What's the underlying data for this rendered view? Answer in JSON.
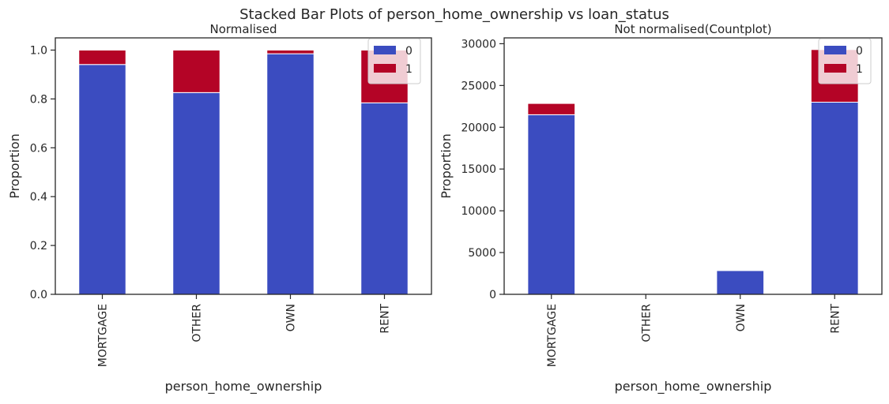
{
  "suptitle": "Stacked Bar Plots of person_home_ownership vs loan_status",
  "colors": {
    "class_0": "#3b4cc0",
    "class_1": "#b40426",
    "axis": "#262626"
  },
  "chart_data": [
    {
      "type": "bar",
      "stacked": true,
      "title": "Normalised",
      "xlabel": "person_home_ownership",
      "ylabel": "Proportion",
      "categories": [
        "MORTGAGE",
        "OTHER",
        "OWN",
        "RENT"
      ],
      "series": [
        {
          "name": "0",
          "values": [
            0.941,
            0.826,
            0.985,
            0.784
          ]
        },
        {
          "name": "1",
          "values": [
            0.059,
            0.174,
            0.015,
            0.216
          ]
        }
      ],
      "ylim": [
        0,
        1.05
      ],
      "yticks": [
        0.0,
        0.2,
        0.4,
        0.6,
        0.8,
        1.0
      ],
      "ytick_labels": [
        "0.0",
        "0.2",
        "0.4",
        "0.6",
        "0.8",
        "1.0"
      ],
      "grid": false,
      "legend": "top-right"
    },
    {
      "type": "bar",
      "stacked": true,
      "title": "Not normalised(Countplot)",
      "xlabel": "person_home_ownership",
      "ylabel": "Proportion",
      "categories": [
        "MORTGAGE",
        "OTHER",
        "OWN",
        "RENT"
      ],
      "series": [
        {
          "name": "0",
          "values": [
            21500,
            80,
            2850,
            23000
          ]
        },
        {
          "name": "1",
          "values": [
            1350,
            15,
            40,
            6300
          ]
        }
      ],
      "ylim": [
        0,
        30700
      ],
      "yticks": [
        0,
        5000,
        10000,
        15000,
        20000,
        25000,
        30000
      ],
      "ytick_labels": [
        "0",
        "5000",
        "10000",
        "15000",
        "20000",
        "25000",
        "30000"
      ],
      "grid": false,
      "legend": "top-right"
    }
  ]
}
